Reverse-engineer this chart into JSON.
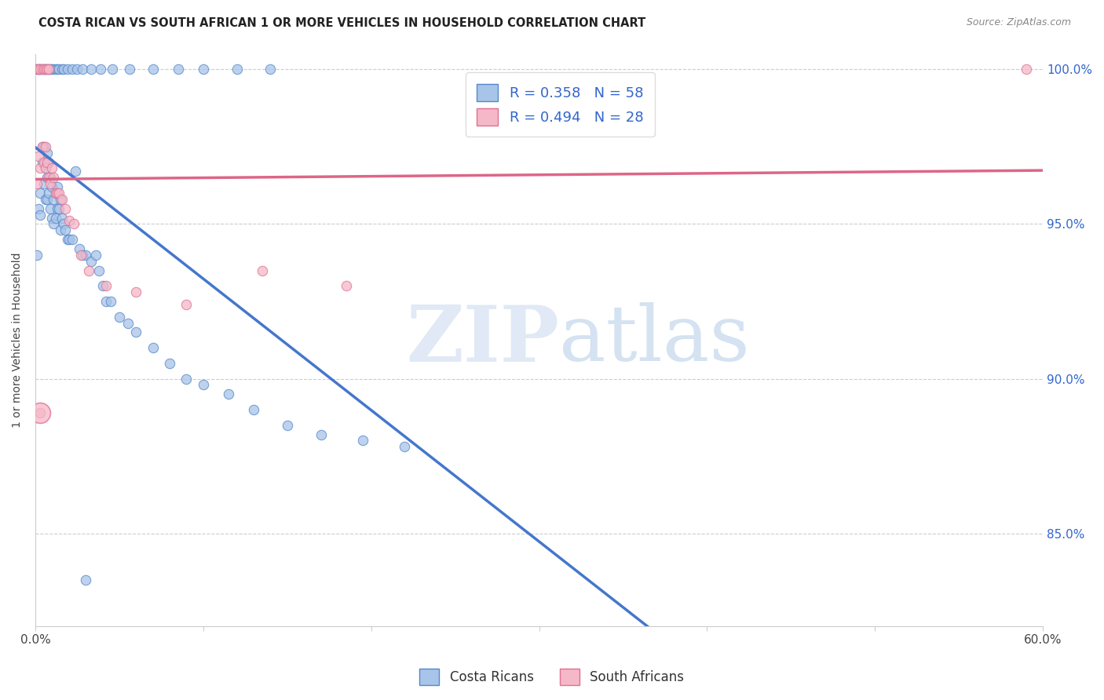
{
  "title": "COSTA RICAN VS SOUTH AFRICAN 1 OR MORE VEHICLES IN HOUSEHOLD CORRELATION CHART",
  "source": "Source: ZipAtlas.com",
  "ylabel_label": "1 or more Vehicles in Household",
  "xlim": [
    0.0,
    0.6
  ],
  "ylim": [
    0.82,
    1.005
  ],
  "xtick_positions": [
    0.0,
    0.1,
    0.2,
    0.3,
    0.4,
    0.5,
    0.6
  ],
  "xticklabels": [
    "0.0%",
    "",
    "",
    "",
    "",
    "",
    "60.0%"
  ],
  "ytick_positions": [
    0.85,
    0.9,
    0.95,
    1.0
  ],
  "yticklabels": [
    "85.0%",
    "90.0%",
    "95.0%",
    "100.0%"
  ],
  "blue_R": 0.358,
  "blue_N": 58,
  "pink_R": 0.494,
  "pink_N": 28,
  "blue_fill": "#a8c4e8",
  "pink_fill": "#f5b8c8",
  "blue_edge": "#5588cc",
  "pink_edge": "#e07090",
  "blue_line_color": "#4477cc",
  "pink_line_color": "#dd6688",
  "legend_label_blue": "Costa Ricans",
  "legend_label_pink": "South Africans",
  "watermark_zip": "ZIP",
  "watermark_atlas": "atlas",
  "blue_x": [
    0.001,
    0.002,
    0.003,
    0.003,
    0.004,
    0.004,
    0.005,
    0.005,
    0.006,
    0.006,
    0.007,
    0.007,
    0.007,
    0.008,
    0.008,
    0.009,
    0.009,
    0.01,
    0.01,
    0.011,
    0.011,
    0.012,
    0.012,
    0.013,
    0.013,
    0.014,
    0.015,
    0.015,
    0.016,
    0.017,
    0.018,
    0.019,
    0.02,
    0.022,
    0.024,
    0.026,
    0.028,
    0.03,
    0.033,
    0.036,
    0.038,
    0.04,
    0.042,
    0.045,
    0.05,
    0.055,
    0.06,
    0.07,
    0.08,
    0.09,
    0.1,
    0.115,
    0.13,
    0.15,
    0.17,
    0.195,
    0.22,
    0.03
  ],
  "blue_y": [
    0.94,
    0.955,
    0.96,
    0.953,
    0.97,
    0.975,
    0.975,
    0.963,
    0.968,
    0.958,
    0.973,
    0.965,
    0.958,
    0.97,
    0.96,
    0.965,
    0.955,
    0.962,
    0.952,
    0.958,
    0.95,
    0.96,
    0.952,
    0.962,
    0.955,
    0.955,
    0.958,
    0.948,
    0.952,
    0.95,
    0.948,
    0.945,
    0.945,
    0.945,
    0.967,
    0.942,
    0.94,
    0.94,
    0.938,
    0.94,
    0.935,
    0.93,
    0.925,
    0.925,
    0.92,
    0.918,
    0.915,
    0.91,
    0.905,
    0.9,
    0.898,
    0.895,
    0.89,
    0.885,
    0.882,
    0.88,
    0.878,
    0.835
  ],
  "blue_x_top": [
    0.001,
    0.002,
    0.003,
    0.003,
    0.004,
    0.005,
    0.006,
    0.007,
    0.008,
    0.009,
    0.01,
    0.011,
    0.012,
    0.013,
    0.014,
    0.016,
    0.017,
    0.019,
    0.022,
    0.025,
    0.028,
    0.033,
    0.039,
    0.046,
    0.056,
    0.07,
    0.085,
    0.1,
    0.12,
    0.14
  ],
  "blue_y_top": [
    1.0,
    1.0,
    1.0,
    1.0,
    1.0,
    1.0,
    1.0,
    1.0,
    1.0,
    1.0,
    1.0,
    1.0,
    1.0,
    1.0,
    1.0,
    1.0,
    1.0,
    1.0,
    1.0,
    1.0,
    1.0,
    1.0,
    1.0,
    1.0,
    1.0,
    1.0,
    1.0,
    1.0,
    1.0,
    1.0
  ],
  "pink_x": [
    0.001,
    0.002,
    0.003,
    0.004,
    0.005,
    0.006,
    0.006,
    0.007,
    0.008,
    0.009,
    0.01,
    0.011,
    0.012,
    0.013,
    0.014,
    0.016,
    0.018,
    0.02,
    0.023,
    0.027,
    0.032,
    0.042,
    0.06,
    0.09,
    0.135,
    0.185,
    0.003,
    0.59
  ],
  "pink_y": [
    0.963,
    0.972,
    0.968,
    0.975,
    0.97,
    0.975,
    0.968,
    0.97,
    0.965,
    0.963,
    0.968,
    0.965,
    0.96,
    0.96,
    0.96,
    0.958,
    0.955,
    0.951,
    0.95,
    0.94,
    0.935,
    0.93,
    0.928,
    0.924,
    0.935,
    0.93,
    0.889,
    1.0
  ],
  "pink_x_top": [
    0.001,
    0.002,
    0.003,
    0.004,
    0.005,
    0.006,
    0.007,
    0.008
  ],
  "pink_y_top": [
    1.0,
    1.0,
    1.0,
    1.0,
    1.0,
    1.0,
    1.0,
    1.0
  ]
}
